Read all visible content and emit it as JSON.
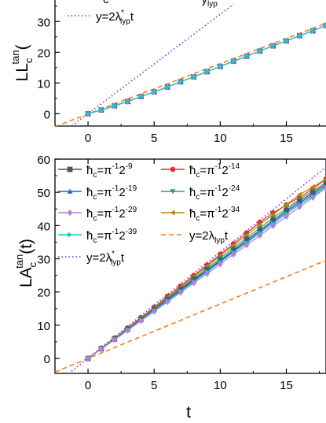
{
  "chart_data": [
    {
      "type": "line",
      "ylabel_base": "LL",
      "ylabel_sub": "c",
      "ylabel_sup": "tan",
      "ylabel_tail": "(",
      "xlim": [
        -2.5,
        18
      ],
      "ylim": [
        -4,
        37
      ],
      "xticks": [
        0,
        5,
        10,
        15
      ],
      "xtick_labels": [
        "0",
        "5",
        "10",
        "15"
      ],
      "yticks": [
        0,
        10,
        20,
        30
      ],
      "ytick_labels": [
        "0",
        "10",
        "20",
        "30"
      ],
      "legend_partial": {
        "text_prefix": "c",
        "tail_base": "y",
        "tail_sub": "lyp"
      },
      "legend": [
        {
          "id": "dot",
          "label_pre": "y=2λ",
          "label_sup": "*",
          "label_sub": "lyp",
          "label_post": "t",
          "color": "#8a2be2",
          "style": "dot"
        }
      ],
      "series": [
        {
          "id": "s9",
          "color": "#555555",
          "marker": "square",
          "x": [
            0,
            1,
            2,
            3,
            4,
            5,
            6,
            7,
            8,
            9,
            10,
            11,
            12,
            13,
            14,
            15,
            16,
            17,
            18
          ],
          "y": [
            0,
            1.2,
            2.6,
            4,
            5.6,
            7.1,
            8.7,
            10.4,
            12,
            13.7,
            15.4,
            17.1,
            18.7,
            20.4,
            22.1,
            23.7,
            25.4,
            27,
            28.7
          ]
        },
        {
          "id": "s19",
          "color": "#1f5fd4",
          "marker": "triangle-up",
          "x": [
            0,
            1,
            2,
            3,
            4,
            5,
            6,
            7,
            8,
            9,
            10,
            11,
            12,
            13,
            14,
            15,
            16,
            17,
            18
          ],
          "y": [
            0,
            1.2,
            2.6,
            4,
            5.6,
            7.1,
            8.7,
            10.4,
            12,
            13.7,
            15.4,
            17.1,
            18.7,
            20.4,
            22.1,
            23.7,
            25.4,
            27,
            28.7
          ]
        },
        {
          "id": "s29",
          "color": "#b57edc",
          "marker": "diamond",
          "x": [
            0,
            1,
            2,
            3,
            4,
            5,
            6,
            7,
            8,
            9,
            10,
            11,
            12,
            13,
            14,
            15,
            16,
            17,
            18
          ],
          "y": [
            0,
            1.2,
            2.6,
            4,
            5.6,
            7.1,
            8.7,
            10.4,
            12,
            13.7,
            15.4,
            17.1,
            18.7,
            20.4,
            22.1,
            23.7,
            25.4,
            27,
            28.7
          ]
        },
        {
          "id": "s39",
          "color": "#20c4c4",
          "marker": "triangle-right",
          "x": [
            0,
            1,
            2,
            3,
            4,
            5,
            6,
            7,
            8,
            9,
            10,
            11,
            12,
            13,
            14,
            15,
            16,
            17,
            18
          ],
          "y": [
            0,
            1.2,
            2.6,
            4,
            5.6,
            7.1,
            8.7,
            10.4,
            12,
            13.7,
            15.4,
            17.1,
            18.7,
            20.4,
            22.1,
            23.7,
            25.4,
            27,
            28.7
          ]
        }
      ],
      "ref_lines": [
        {
          "id": "dash",
          "color": "#f08020",
          "style": "dash",
          "x": [
            -2.5,
            18
          ],
          "y": [
            -4.2,
            29.4
          ]
        },
        {
          "id": "dot",
          "color": "#8a2be2",
          "style": "dot",
          "x": [
            -2.5,
            11
          ],
          "y": [
            -8.1,
            35.6
          ]
        }
      ]
    },
    {
      "type": "line",
      "ylabel_base": "LA",
      "ylabel_sub": "c",
      "ylabel_sup": "tan",
      "ylabel_tail": "(t)",
      "xlabel": "t",
      "xlim": [
        -2.5,
        18
      ],
      "ylim": [
        -4.5,
        60
      ],
      "xticks": [
        0,
        5,
        10,
        15
      ],
      "xtick_labels": [
        "0",
        "5",
        "10",
        "15"
      ],
      "yticks": [
        0,
        10,
        20,
        30,
        40,
        50,
        60
      ],
      "ytick_labels": [
        "0",
        "10",
        "20",
        "30",
        "40",
        "50",
        "60"
      ],
      "legend": [
        {
          "id": "s9",
          "label_pre": "ħ",
          "label_sub": "c",
          "label_mid": "=π",
          "label_sup": "-1",
          "label_post": "2",
          "label_sup2": "-9",
          "color": "#555555",
          "marker": "square"
        },
        {
          "id": "s14",
          "label_pre": "ħ",
          "label_sub": "c",
          "label_mid": "=π",
          "label_sup": "-1",
          "label_post": "2",
          "label_sup2": "-14",
          "color": "#e03030",
          "marker": "circle"
        },
        {
          "id": "s19",
          "label_pre": "ħ",
          "label_sub": "c",
          "label_mid": "=π",
          "label_sup": "-1",
          "label_post": "2",
          "label_sup2": "-19",
          "color": "#1f5fd4",
          "marker": "triangle-up"
        },
        {
          "id": "s24",
          "label_pre": "ħ",
          "label_sub": "c",
          "label_mid": "=π",
          "label_sup": "-1",
          "label_post": "2",
          "label_sup2": "-24",
          "color": "#2e9e5b",
          "marker": "triangle-down"
        },
        {
          "id": "s29",
          "label_pre": "ħ",
          "label_sub": "c",
          "label_mid": "=π",
          "label_sup": "-1",
          "label_post": "2",
          "label_sup2": "-29",
          "color": "#b57edc",
          "marker": "diamond"
        },
        {
          "id": "s34",
          "label_pre": "ħ",
          "label_sub": "c",
          "label_mid": "=π",
          "label_sup": "-1",
          "label_post": "2",
          "label_sup2": "-34",
          "color": "#b8860b",
          "marker": "triangle-left"
        },
        {
          "id": "s39",
          "label_pre": "ħ",
          "label_sub": "c",
          "label_mid": "=π",
          "label_sup": "-1",
          "label_post": "2",
          "label_sup2": "-39",
          "color": "#20c4c4",
          "marker": "triangle-right"
        },
        {
          "id": "dash",
          "label_pre": "y=2λ",
          "label_sub": "lyp",
          "label_post": "t",
          "color": "#f08020",
          "style": "dash"
        },
        {
          "id": "dot",
          "label_pre": "y=2λ",
          "label_sup": "*",
          "label_sub": "lyp",
          "label_post": "t",
          "color": "#8a2be2",
          "style": "dot"
        }
      ],
      "series": [
        {
          "id": "s14",
          "color": "#e03030",
          "marker": "circle",
          "x": [
            0,
            1,
            2,
            3,
            4,
            5,
            6,
            7,
            8,
            9,
            10,
            11,
            12,
            13,
            14,
            15,
            16,
            17,
            18
          ],
          "y": [
            0,
            3.1,
            6.1,
            9.2,
            12.3,
            15.4,
            18.7,
            21.8,
            25,
            28.1,
            31.3,
            34.5,
            37.8,
            41,
            43.8,
            46.2,
            48.5,
            51,
            54
          ]
        },
        {
          "id": "s34",
          "color": "#b8860b",
          "marker": "triangle-left",
          "x": [
            0,
            1,
            2,
            3,
            4,
            5,
            6,
            7,
            8,
            9,
            10,
            11,
            12,
            13,
            14,
            15,
            16,
            17,
            18
          ],
          "y": [
            0,
            3,
            6,
            9.1,
            12.1,
            15.2,
            18.3,
            21.4,
            24.6,
            27.7,
            30.9,
            34,
            37.1,
            40.3,
            43.3,
            46.3,
            49.3,
            51.6,
            54
          ]
        },
        {
          "id": "s24",
          "color": "#2e9e5b",
          "marker": "triangle-down",
          "x": [
            0,
            1,
            2,
            3,
            4,
            5,
            6,
            7,
            8,
            9,
            10,
            11,
            12,
            13,
            14,
            15,
            16,
            17,
            18
          ],
          "y": [
            0,
            2.9,
            5.9,
            8.9,
            11.9,
            14.9,
            18,
            21,
            24.1,
            27.1,
            30.2,
            33.2,
            36.3,
            39.3,
            42.3,
            45.1,
            47.9,
            50.3,
            53
          ]
        },
        {
          "id": "s9",
          "color": "#555555",
          "marker": "square",
          "x": [
            0,
            1,
            2,
            3,
            4,
            5,
            6,
            7,
            8,
            9,
            10,
            11,
            12,
            13,
            14,
            15,
            16,
            17,
            18
          ],
          "y": [
            0,
            2.9,
            5.8,
            8.8,
            11.7,
            14.7,
            17.7,
            20.7,
            23.7,
            26.6,
            29.6,
            32.6,
            35.7,
            38.6,
            41.6,
            44.5,
            47.3,
            49.8,
            52.5
          ]
        },
        {
          "id": "s19",
          "color": "#1f5fd4",
          "marker": "triangle-up",
          "x": [
            0,
            1,
            2,
            3,
            4,
            5,
            6,
            7,
            8,
            9,
            10,
            11,
            12,
            13,
            14,
            15,
            16,
            17,
            18
          ],
          "y": [
            0,
            2.9,
            5.8,
            8.7,
            11.6,
            14.6,
            17.5,
            20.5,
            23.4,
            26.4,
            29.3,
            32.3,
            35.2,
            38.2,
            41.1,
            44,
            46.8,
            49.3,
            52
          ]
        },
        {
          "id": "s39",
          "color": "#20c4c4",
          "marker": "triangle-right",
          "x": [
            0,
            1,
            2,
            3,
            4,
            5,
            6,
            7,
            8,
            9,
            10,
            11,
            12,
            13,
            14,
            15,
            16,
            17,
            18
          ],
          "y": [
            0,
            2.9,
            5.7,
            8.6,
            11.5,
            14.4,
            17.3,
            20.2,
            23.1,
            26,
            29,
            31.9,
            34.8,
            37.7,
            40.6,
            43.5,
            46.3,
            48.8,
            51.5
          ]
        },
        {
          "id": "s29",
          "color": "#b57edc",
          "marker": "diamond",
          "x": [
            0,
            1,
            2,
            3,
            4,
            5,
            6,
            7,
            8,
            9,
            10,
            11,
            12,
            13,
            14,
            15,
            16,
            17,
            18
          ],
          "y": [
            0,
            2.8,
            5.6,
            8.4,
            11.3,
            14.1,
            17,
            19.8,
            22.7,
            25.5,
            28.4,
            31.3,
            34.1,
            37,
            39.9,
            42.7,
            45.6,
            48.4,
            51.3
          ]
        }
      ],
      "ref_lines": [
        {
          "id": "dash",
          "color": "#f08020",
          "style": "dash",
          "x": [
            -2.5,
            18
          ],
          "y": [
            -4.1,
            29.5
          ]
        },
        {
          "id": "dot",
          "color": "#8a2be2",
          "style": "dot",
          "x": [
            -2.5,
            18
          ],
          "y": [
            -7.9,
            57.6
          ]
        }
      ]
    }
  ]
}
